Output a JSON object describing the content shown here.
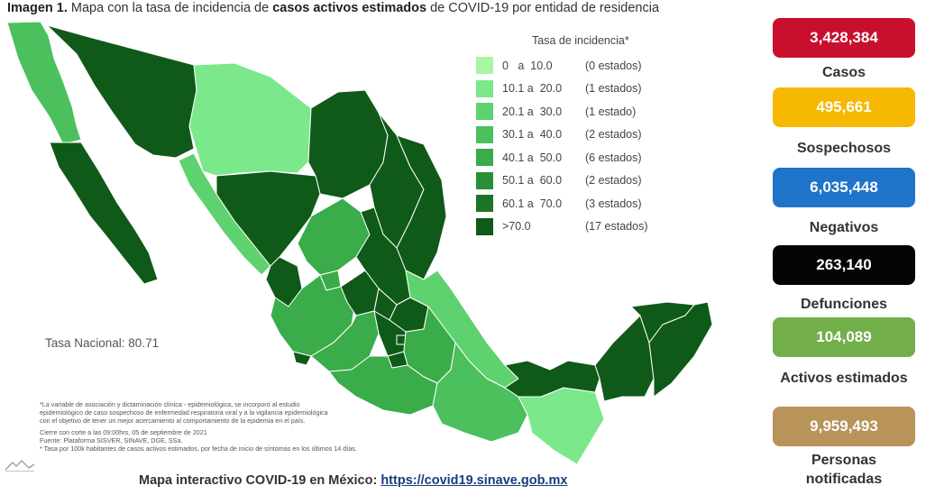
{
  "title": {
    "prefix": "Imagen 1.",
    "part1": " Mapa con la tasa de incidencia de ",
    "bold": "casos activos estimados",
    "part2": " de COVID-19 por entidad de residencia"
  },
  "legend": {
    "title": "Tasa de incidencia*",
    "items": [
      {
        "range": "0   a  10.0",
        "count": "(0 estados)",
        "color": "#a8f5a2"
      },
      {
        "range": "10.1 a  20.0",
        "count": "(1 estados)",
        "color": "#7be88b"
      },
      {
        "range": "20.1 a  30.0",
        "count": "(1 estado)",
        "color": "#5dd26e"
      },
      {
        "range": "30.1 a  40.0",
        "count": "(2 estados)",
        "color": "#4bc05d"
      },
      {
        "range": "40.1 a  50.0",
        "count": "(6 estados)",
        "color": "#3aac4a"
      },
      {
        "range": "50.1 a  60.0",
        "count": "(2 estados)",
        "color": "#2a8f38"
      },
      {
        "range": "60.1 a  70.0",
        "count": "(3 estados)",
        "color": "#1d7428"
      },
      {
        "range": ">70.0",
        "count": "(17 estados)",
        "color": "#0f5a18"
      }
    ]
  },
  "tasa_nacional": "Tasa Nacional: 80.71",
  "notes": {
    "n1": "*La variable de asociación y dictaminación clínica - epidemiológica, se incorporó al estudio",
    "n2": "epidemiológico de caso sospechoso de enfermedad respiratoria viral y a la vigilancia epidemiológica",
    "n3": "con el objetivo de tener un mejor acercamiento al comportamiento de la epidemia en el país.",
    "n4": "Cierre con corte a las 09:00hrs, 05 de septiembre de 2021",
    "n5": "Fuente: Plataforma SISVER, SINAVE, DGE, SSa.",
    "n6": "* Tasa por 100k habitantes de casos activos estimados, por fecha de inicio de síntomas en los últimos 14 días."
  },
  "footer": {
    "text": "Mapa interactivo COVID-19 en México: ",
    "link": "https://covid19.sinave.gob.mx"
  },
  "stats": [
    {
      "value": "3,428,384",
      "label": "Casos",
      "color": "#c8102e"
    },
    {
      "value": "495,661",
      "label": "Sospechosos",
      "color": "#f6b800"
    },
    {
      "value": "6,035,448",
      "label": "Negativos",
      "color": "#1f74c9"
    },
    {
      "value": "263,140",
      "label": "Defunciones",
      "color": "#050505"
    },
    {
      "value": "104,089",
      "label": "Activos estimados",
      "color": "#72ae4a"
    },
    {
      "value": "9,959,493",
      "label": "Personas notificadas",
      "color": "#b8935a"
    }
  ]
}
